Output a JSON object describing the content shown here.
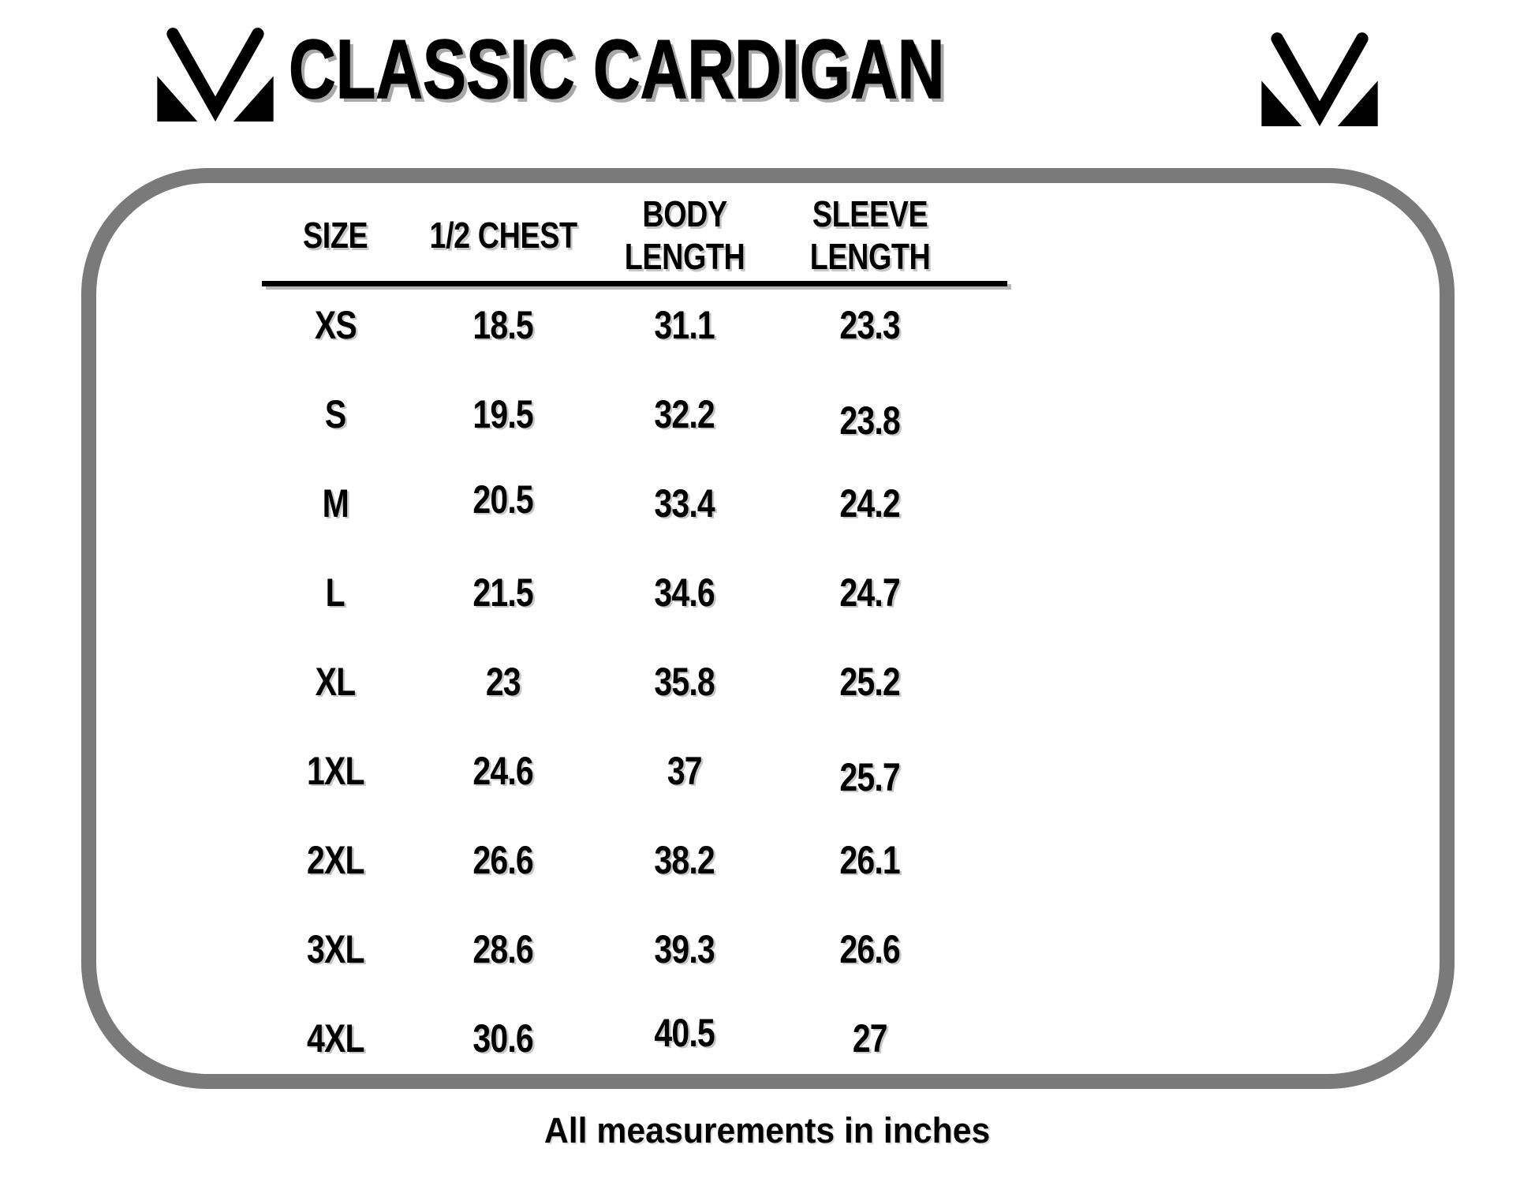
{
  "page": {
    "title": "CLASSIC CARDIGAN",
    "footer_note": "All measurements in inches"
  },
  "brand": {
    "logo_name": "m-monogram-logo"
  },
  "colors": {
    "text": "#000000",
    "title_shadow": "#a8a8a8",
    "frame_border": "#7a7a7a",
    "background": "#ffffff"
  },
  "size_chart": {
    "columns": [
      "SIZE",
      "1/2 CHEST",
      "BODY LENGTH",
      "SLEEVE LENGTH"
    ],
    "columns_display": [
      [
        "SIZE"
      ],
      [
        "1/2 CHEST"
      ],
      [
        "BODY",
        "LENGTH"
      ],
      [
        "SLEEVE",
        "LENGTH"
      ]
    ],
    "units": "inches",
    "rows": [
      {
        "size": "XS",
        "half_chest": "18.5",
        "body_length": "31.1",
        "sleeve_length": "23.3"
      },
      {
        "size": "S",
        "half_chest": "19.5",
        "body_length": "32.2",
        "sleeve_length": "23.8"
      },
      {
        "size": "M",
        "half_chest": "20.5",
        "body_length": "33.4",
        "sleeve_length": "24.2"
      },
      {
        "size": "L",
        "half_chest": "21.5",
        "body_length": "34.6",
        "sleeve_length": "24.7"
      },
      {
        "size": "XL",
        "half_chest": "23",
        "body_length": "35.8",
        "sleeve_length": "25.2"
      },
      {
        "size": "1XL",
        "half_chest": "24.6",
        "body_length": "37",
        "sleeve_length": "25.7"
      },
      {
        "size": "2XL",
        "half_chest": "26.6",
        "body_length": "38.2",
        "sleeve_length": "26.1"
      },
      {
        "size": "3XL",
        "half_chest": "28.6",
        "body_length": "39.3",
        "sleeve_length": "26.6"
      },
      {
        "size": "4XL",
        "half_chest": "30.6",
        "body_length": "40.5",
        "sleeve_length": "27"
      }
    ]
  }
}
